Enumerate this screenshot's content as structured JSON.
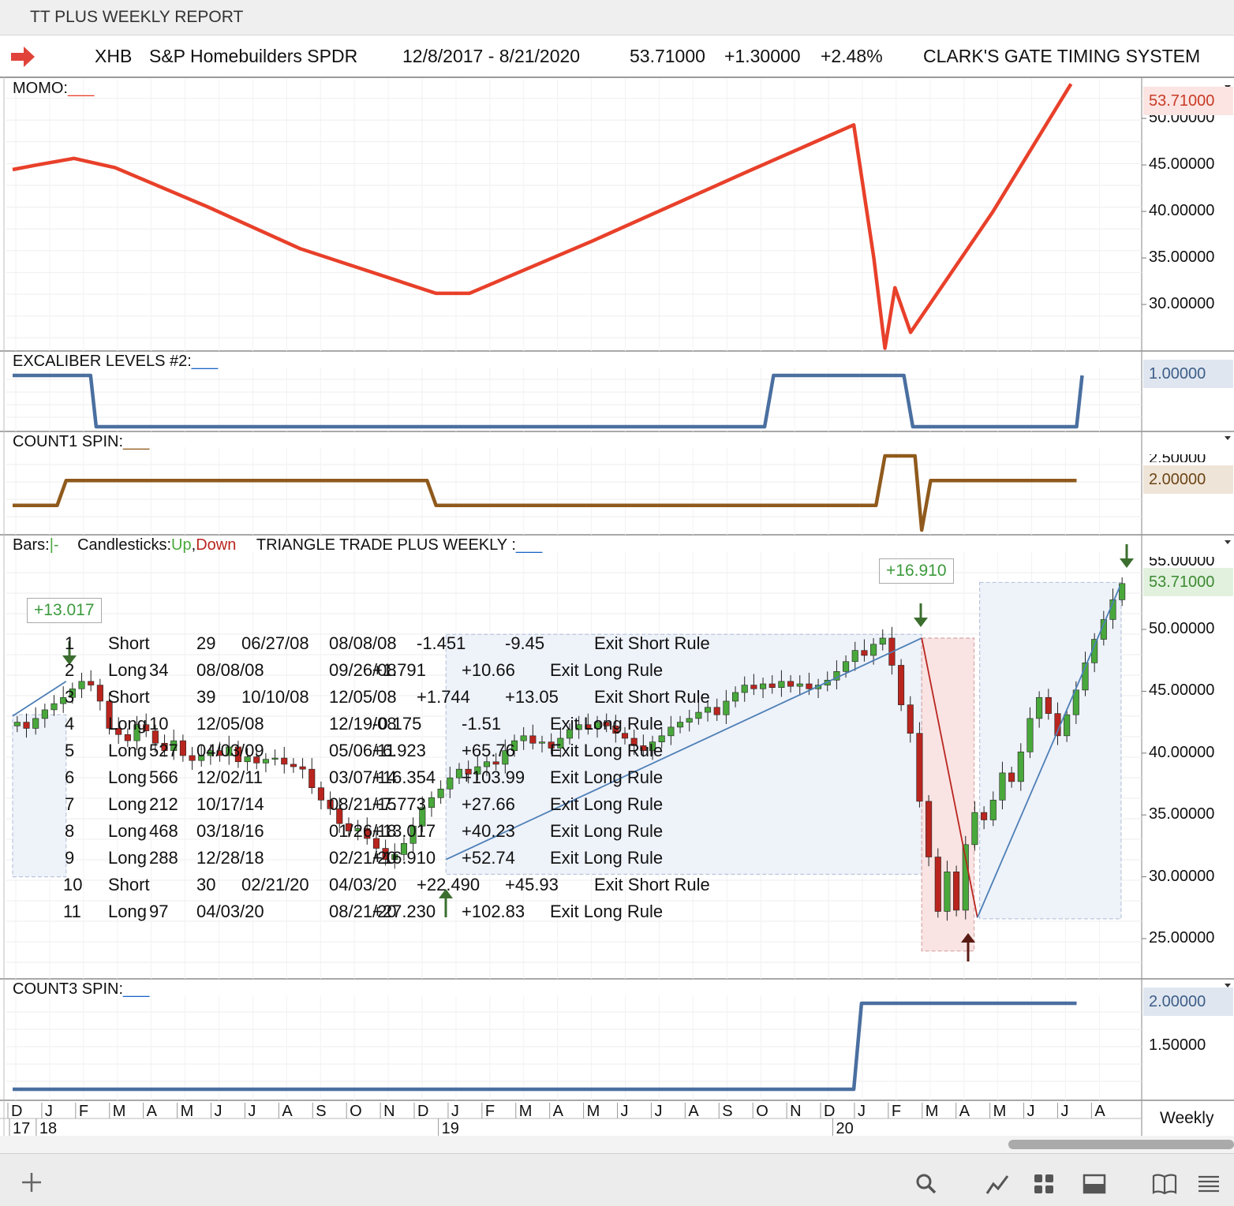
{
  "window_title": "TT PLUS WEEKLY REPORT",
  "header": {
    "symbol": "XHB",
    "name": "S&P Homebuilders SPDR",
    "date_range": "12/8/2017 - 8/21/2020",
    "price": "53.71000",
    "change": "+1.30000",
    "change_pct": "+2.48%",
    "system": "CLARK'S GATE TIMING SYSTEM"
  },
  "chart_data": [
    {
      "type": "line",
      "title": "MOMO:",
      "current_value": "53.71000",
      "y_ticks": [
        "50.00000",
        "45.00000",
        "40.00000",
        "35.00000",
        "30.00000"
      ],
      "ylim": [
        25.0,
        54.5
      ],
      "x_months": [
        "D",
        "J",
        "F",
        "M",
        "A",
        "M",
        "J",
        "J",
        "A",
        "S",
        "O",
        "N",
        "D",
        "J",
        "F",
        "M",
        "A",
        "M",
        "J",
        "J",
        "A",
        "S",
        "O",
        "N",
        "D",
        "J",
        "F",
        "M",
        "A",
        "M",
        "J",
        "J",
        "A"
      ],
      "x": [
        0,
        2.2,
        5.5,
        9.2,
        17.5,
        25.8,
        38,
        41,
        52,
        66,
        75.5,
        77.3,
        78.3,
        79.2,
        80.6,
        88,
        95
      ],
      "values": [
        44.5,
        45.0,
        45.7,
        44.7,
        40.5,
        36.0,
        31.2,
        31.2,
        36.8,
        44.3,
        49.3,
        35.0,
        25.3,
        31.8,
        27.0,
        40.0,
        53.7
      ],
      "color": "#e8402a"
    },
    {
      "type": "line",
      "title": "EXCALIBER LEVELS #2:",
      "current_value": "1.00000",
      "x": [
        0,
        7.0,
        7.5,
        67.5,
        68.3,
        80.0,
        80.8,
        95.5,
        96.0
      ],
      "values": [
        1,
        1,
        0,
        0,
        1,
        1,
        0,
        0,
        1
      ],
      "color": "#4a6fa0"
    },
    {
      "type": "line",
      "title": "COUNT1 SPIN:",
      "current_value": "2.00000",
      "clipped_tick": "2.50000",
      "x": [
        0,
        4.0,
        4.8,
        37.2,
        38.0,
        77.5,
        78.3,
        81.0,
        81.6,
        82.4,
        95.5
      ],
      "values": [
        1,
        1,
        2,
        2,
        1,
        1,
        3,
        3,
        0,
        2,
        2
      ],
      "color": "#8f5a1c"
    },
    {
      "type": "candlestick",
      "title": "TRIANGLE TRADE PLUS WEEKLY :",
      "legend": {
        "bars": "Bars:",
        "bars_mark": "|-",
        "candles": "Candlesticks:",
        "up": "Up",
        "down": "Down",
        "sep": ","
      },
      "current_value": "53.71000",
      "clipped_tick": "55.00000",
      "y_ticks": [
        "50.00000",
        "45.00000",
        "40.00000",
        "35.00000",
        "30.00000",
        "25.00000"
      ],
      "ylim": [
        23.0,
        56.0
      ],
      "x_months": [
        "D",
        "J",
        "F",
        "M",
        "A",
        "M",
        "J",
        "J",
        "A",
        "S",
        "O",
        "N",
        "D",
        "J",
        "F",
        "M",
        "A",
        "M",
        "J",
        "J",
        "A",
        "S",
        "O",
        "N",
        "D",
        "J",
        "F",
        "M",
        "A",
        "M",
        "J",
        "J",
        "A"
      ],
      "x_years": [
        {
          "label": "17",
          "x": 0
        },
        {
          "label": "18",
          "x": 2.4
        },
        {
          "label": "19",
          "x": 38.5
        },
        {
          "label": "20",
          "x": 73.9
        }
      ],
      "closes": [
        42.5,
        42.0,
        42.8,
        43.5,
        44.0,
        44.5,
        45.2,
        45.8,
        45.5,
        44.2,
        42.0,
        41.5,
        41.0,
        42.3,
        41.8,
        40.8,
        40.2,
        41.0,
        39.8,
        39.4,
        39.8,
        40.2,
        39.8,
        40.5,
        39.3,
        39.7,
        39.2,
        39.5,
        39.6,
        39.1,
        38.9,
        38.7,
        37.2,
        36.2,
        35.5,
        34.3,
        33.7,
        33.9,
        33.1,
        32.3,
        31.4,
        31.8,
        32.7,
        34.1,
        35.6,
        36.4,
        37.1,
        38.0,
        38.7,
        38.3,
        38.9,
        39.3,
        39.1,
        40.2,
        41.0,
        41.4,
        40.8,
        40.9,
        40.4,
        41.2,
        41.9,
        42.3,
        42.0,
        42.5,
        42.2,
        41.6,
        41.2,
        40.6,
        40.2,
        40.9,
        41.4,
        42.1,
        42.5,
        42.8,
        43.3,
        43.7,
        43.1,
        44.2,
        44.9,
        45.5,
        45.2,
        45.6,
        45.3,
        45.8,
        45.4,
        45.6,
        45.2,
        45.5,
        45.9,
        46.6,
        47.4,
        48.3,
        47.9,
        48.8,
        49.3,
        47.1,
        43.9,
        41.6,
        36.1,
        31.6,
        27.2,
        30.4,
        27.3,
        32.6,
        35.2,
        34.6,
        36.2,
        38.4,
        37.7,
        40.1,
        42.8,
        44.5,
        43.2,
        41.4,
        43.1,
        45.1,
        47.3,
        49.2,
        50.8,
        52.4,
        53.71
      ],
      "trades": [
        {
          "num": "1",
          "side": "Short",
          "bars": "29",
          "entry": "06/27/08",
          "exit": "08/08/08",
          "pnl": "-1.451",
          "pct": "-9.45",
          "rule": "Exit Short Rule"
        },
        {
          "num": "2",
          "side": "Long",
          "bars": "34",
          "entry": "08/08/08",
          "exit": "09/26/08",
          "pnl": "+1.791",
          "pct": "+10.66",
          "rule": "Exit Long Rule"
        },
        {
          "num": "3",
          "side": "Short",
          "bars": "39",
          "entry": "10/10/08",
          "exit": "12/05/08",
          "pnl": "+1.744",
          "pct": "+13.05",
          "rule": "Exit Short Rule"
        },
        {
          "num": "4",
          "side": "Long",
          "bars": "10",
          "entry": "12/05/08",
          "exit": "12/19/08",
          "pnl": "-0.175",
          "pct": "-1.51",
          "rule": "Exit Long Rule"
        },
        {
          "num": "5",
          "side": "Long",
          "bars": "527",
          "entry": "04/03/09",
          "exit": "05/06/11",
          "pnl": "+6.923",
          "pct": "+65.76",
          "rule": "Exit Long Rule"
        },
        {
          "num": "6",
          "side": "Long",
          "bars": "566",
          "entry": "12/02/11",
          "exit": "03/07/14",
          "pnl": "+16.354",
          "pct": "+103.99",
          "rule": "Exit Long Rule"
        },
        {
          "num": "7",
          "side": "Long",
          "bars": "212",
          "entry": "10/17/14",
          "exit": "08/21/15",
          "pnl": "+7.773",
          "pct": "+27.66",
          "rule": "Exit Long Rule"
        },
        {
          "num": "8",
          "side": "Long",
          "bars": "468",
          "entry": "03/18/16",
          "exit": "01/26/18",
          "pnl": "+13.017",
          "pct": "+40.23",
          "rule": "Exit Long Rule"
        },
        {
          "num": "9",
          "side": "Long",
          "bars": "288",
          "entry": "12/28/18",
          "exit": "02/21/20",
          "pnl": "+16.910",
          "pct": "+52.74",
          "rule": "Exit Long Rule"
        },
        {
          "num": "10",
          "side": "Short",
          "bars": "30",
          "entry": "02/21/20",
          "exit": "04/03/20",
          "pnl": "+22.490",
          "pct": "+45.93",
          "rule": "Exit Short Rule"
        },
        {
          "num": "11",
          "side": "Long",
          "bars": "97",
          "entry": "04/03/20",
          "exit": "08/21/20",
          "pnl": "+27.230",
          "pct": "+102.83",
          "rule": "Exit Long Rule"
        }
      ],
      "callouts": [
        "+13.017",
        "+16.910"
      ],
      "up_color": "#49a83b",
      "down_color": "#b9251e",
      "trend_color": "#4d7fb6"
    },
    {
      "type": "line",
      "title": "COUNT3 SPIN:",
      "current_value": "2.00000",
      "y_ticks": [
        "1.50000"
      ],
      "x": [
        0,
        75.5,
        76.2,
        95.5
      ],
      "values": [
        1,
        1,
        2,
        2
      ],
      "color": "#4a6fa0"
    }
  ],
  "footer": {
    "timeframe": "Weekly"
  }
}
